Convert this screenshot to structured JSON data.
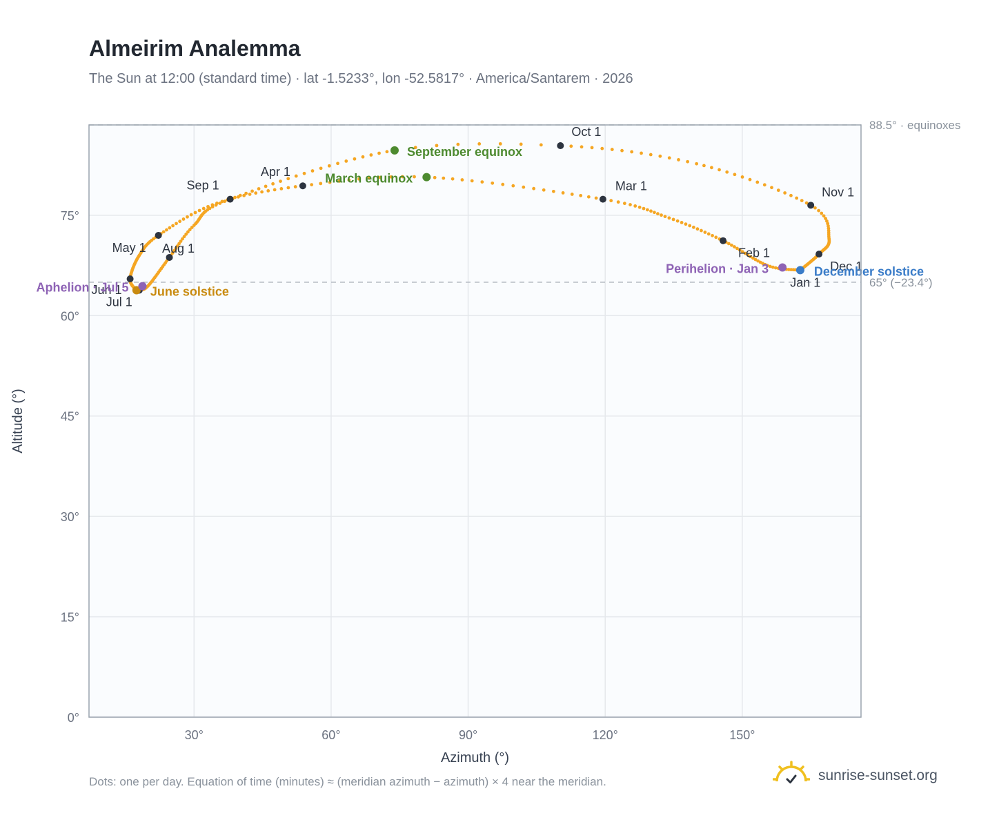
{
  "header": {
    "title": "Almeirim Analemma",
    "subtitle": "The Sun at 12:00 (standard time) · lat -1.5233°, lon -52.5817° · America/Santarem · 2026"
  },
  "footer": {
    "note": "Dots: one per day. Equation of time (minutes) ≈ (meridian azimuth − azimuth) × 4 near the meridian.",
    "brand": "sunrise-sunset.org",
    "brand_icon": "sunrise-logo-icon"
  },
  "colors": {
    "curve": "#f5a623",
    "month_point": "#2d3440",
    "equinox": "#4d8a2f",
    "june_solstice": "#c98b10",
    "december_solstice": "#3a7cc8",
    "apsis": "#8e63b5",
    "plot_bg": "#fafcfe",
    "grid": "#e5e8ec",
    "frame": "#9aa3ae"
  },
  "chart_data": {
    "type": "scatter",
    "title": "Almeirim Analemma",
    "xlabel": "Azimuth (°)",
    "ylabel": "Altitude (°)",
    "xlim": [
      7,
      176
    ],
    "ylim": [
      0,
      88.5
    ],
    "xticks": [
      30,
      60,
      90,
      120,
      150
    ],
    "yticks": [
      0,
      15,
      30,
      45,
      60,
      75
    ],
    "xtick_labels": [
      "30°",
      "60°",
      "90°",
      "120°",
      "150°"
    ],
    "ytick_labels": [
      "0°",
      "15°",
      "30°",
      "45°",
      "60°",
      "75°"
    ],
    "grid": true,
    "reference_lines": [
      {
        "value": 88.5,
        "label": "88.5° · equinoxes"
      },
      {
        "value": 65,
        "label": "65° (−23.4°)"
      }
    ],
    "curve_anchors": [
      {
        "date": "2026-01-01",
        "az": 162.6,
        "alt": 66.8
      },
      {
        "date": "2026-01-15",
        "az": 155.5,
        "alt": 67.5
      },
      {
        "date": "2026-02-01",
        "az": 145.8,
        "alt": 71.2
      },
      {
        "date": "2026-02-15",
        "az": 134.0,
        "alt": 74.6
      },
      {
        "date": "2026-03-01",
        "az": 119.5,
        "alt": 77.4
      },
      {
        "date": "2026-03-20",
        "az": 80.9,
        "alt": 80.7
      },
      {
        "date": "2026-04-01",
        "az": 53.8,
        "alt": 79.4
      },
      {
        "date": "2026-04-15",
        "az": 35.0,
        "alt": 76.8
      },
      {
        "date": "2026-05-01",
        "az": 22.2,
        "alt": 72.0
      },
      {
        "date": "2026-05-15",
        "az": 18.0,
        "alt": 69.0
      },
      {
        "date": "2026-06-01",
        "az": 16.0,
        "alt": 65.5
      },
      {
        "date": "2026-06-21",
        "az": 17.4,
        "alt": 63.8
      },
      {
        "date": "2026-07-01",
        "az": 18.0,
        "alt": 63.8
      },
      {
        "date": "2026-07-15",
        "az": 20.0,
        "alt": 64.5
      },
      {
        "date": "2026-08-01",
        "az": 24.6,
        "alt": 68.7
      },
      {
        "date": "2026-08-15",
        "az": 30.0,
        "alt": 73.5
      },
      {
        "date": "2026-09-01",
        "az": 37.9,
        "alt": 77.4
      },
      {
        "date": "2026-09-23",
        "az": 73.9,
        "alt": 84.7
      },
      {
        "date": "2026-10-01",
        "az": 110.2,
        "alt": 85.4
      },
      {
        "date": "2026-10-15",
        "az": 140.0,
        "alt": 82.7
      },
      {
        "date": "2026-11-01",
        "az": 165.0,
        "alt": 76.5
      },
      {
        "date": "2026-11-15",
        "az": 169.0,
        "alt": 71.5
      },
      {
        "date": "2026-12-01",
        "az": 166.8,
        "alt": 69.2
      },
      {
        "date": "2026-12-21",
        "az": 162.7,
        "alt": 66.8
      },
      {
        "date": "2026-12-31",
        "az": 162.6,
        "alt": 66.8
      }
    ],
    "month_points": [
      {
        "label": "Jan 1",
        "az": 162.6,
        "alt": 66.8
      },
      {
        "label": "Feb 1",
        "az": 145.8,
        "alt": 71.2
      },
      {
        "label": "Mar 1",
        "az": 119.5,
        "alt": 77.4
      },
      {
        "label": "Apr 1",
        "az": 53.8,
        "alt": 79.4
      },
      {
        "label": "May 1",
        "az": 22.2,
        "alt": 72.0
      },
      {
        "label": "Jun 1",
        "az": 16.0,
        "alt": 65.5
      },
      {
        "label": "Jul 1",
        "az": 18.0,
        "alt": 63.8
      },
      {
        "label": "Aug 1",
        "az": 24.6,
        "alt": 68.7
      },
      {
        "label": "Sep 1",
        "az": 37.9,
        "alt": 77.4
      },
      {
        "label": "Oct 1",
        "az": 110.2,
        "alt": 85.4
      },
      {
        "label": "Nov 1",
        "az": 165.0,
        "alt": 76.5
      },
      {
        "label": "Dec 1",
        "az": 166.8,
        "alt": 69.2
      }
    ],
    "events": [
      {
        "label": "March equinox",
        "az": 80.9,
        "alt": 80.7,
        "color_key": "equinox"
      },
      {
        "label": "September equinox",
        "az": 73.9,
        "alt": 84.7,
        "color_key": "equinox"
      },
      {
        "label": "June solstice",
        "az": 17.4,
        "alt": 63.8,
        "color_key": "june_solstice"
      },
      {
        "label": "December solstice",
        "az": 162.7,
        "alt": 66.8,
        "color_key": "december_solstice"
      },
      {
        "label": "Aphelion · Jul 5",
        "az": 18.7,
        "alt": 64.4,
        "color_key": "apsis"
      },
      {
        "label": "Perihelion · Jan 3",
        "az": 158.8,
        "alt": 67.2,
        "color_key": "apsis"
      }
    ]
  }
}
